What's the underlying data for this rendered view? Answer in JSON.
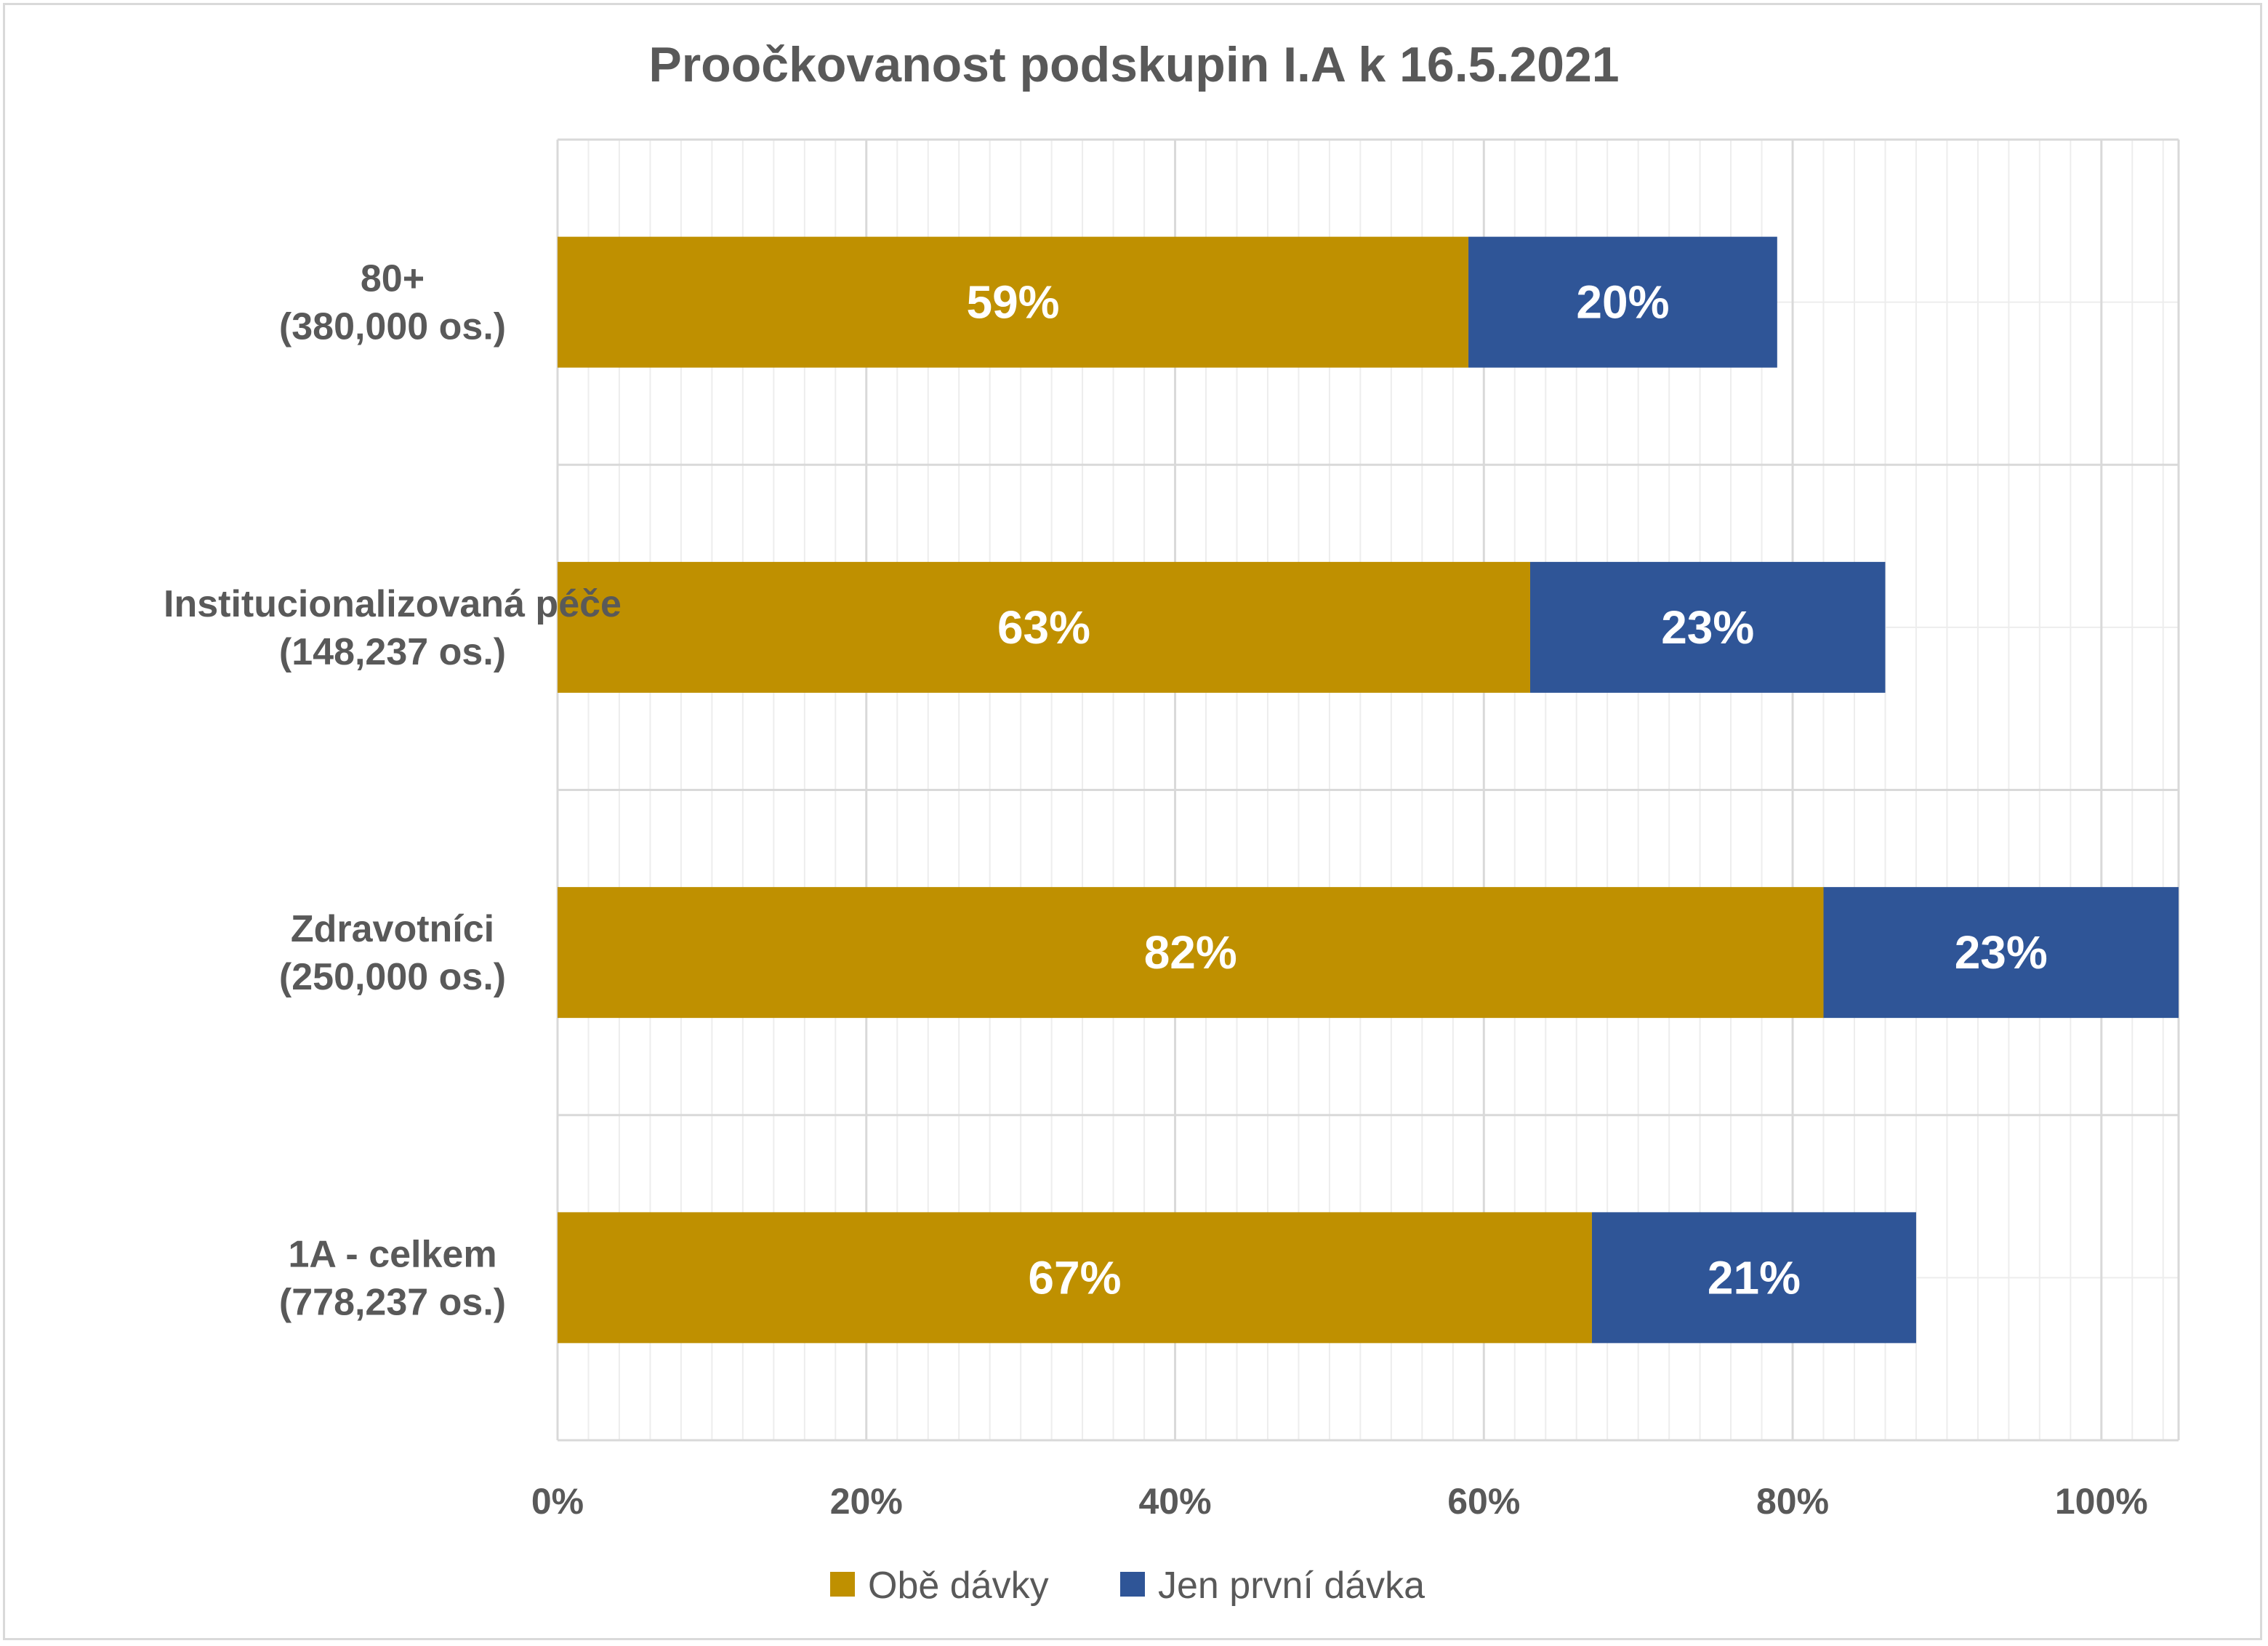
{
  "chart_data": {
    "type": "bar",
    "orientation": "horizontal",
    "stacked": true,
    "title": "Proočkovanost podskupin I.A k 16.5.2021",
    "categories": [
      [
        "80+",
        "(380,000 os.)"
      ],
      [
        "Institucionalizovaná péče",
        "(148,237 os.)"
      ],
      [
        "Zdravotníci",
        "(250,000 os.)"
      ],
      [
        "1A - celkem",
        "(778,237 os.)"
      ]
    ],
    "series": [
      {
        "name": "Obě dávky",
        "color": "#bf9000",
        "values": [
          0.59,
          0.63,
          0.82,
          0.67
        ],
        "labels": [
          "59%",
          "63%",
          "82%",
          "67%"
        ]
      },
      {
        "name": "Jen první dávka",
        "color": "#2f5597",
        "values": [
          0.2,
          0.23,
          0.23,
          0.21
        ],
        "labels": [
          "20%",
          "23%",
          "23%",
          "21%"
        ]
      }
    ],
    "xlim": [
      0,
      1.05
    ],
    "xticks": [
      {
        "value": 0,
        "label": "0%"
      },
      {
        "value": 0.2,
        "label": "20%"
      },
      {
        "value": 0.4,
        "label": "40%"
      },
      {
        "value": 0.6,
        "label": "60%"
      },
      {
        "value": 0.8,
        "label": "80%"
      },
      {
        "value": 1.0,
        "label": "100%"
      }
    ],
    "grid": true,
    "legend_position": "bottom"
  }
}
